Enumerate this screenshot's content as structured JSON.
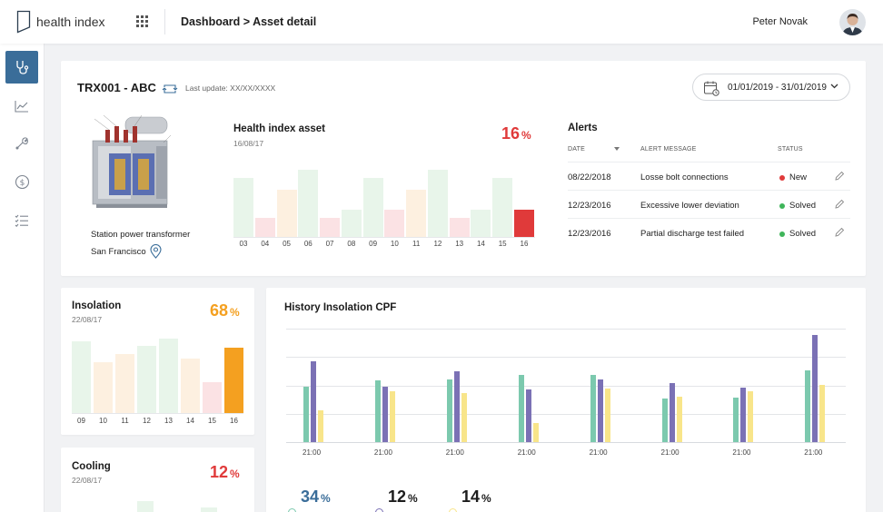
{
  "header": {
    "app_name": "health index",
    "breadcrumb": "Dashboard > Asset detail",
    "user_name": "Peter Novak"
  },
  "sidebar": {
    "items": [
      {
        "icon": "stethoscope-icon",
        "active": true
      },
      {
        "icon": "trend-chart-icon",
        "active": false
      },
      {
        "icon": "wrench-icon",
        "active": false
      },
      {
        "icon": "dollar-icon",
        "active": false
      },
      {
        "icon": "checklist-icon",
        "active": false
      }
    ]
  },
  "asset": {
    "title": "TRX001 - ABC",
    "last_update": "Last update: XX/XX/XXXX",
    "date_range": "01/01/2019 - 31/01/2019",
    "station": "Station power transformer",
    "city": "San Francisco"
  },
  "colors": {
    "red": "#e03a3a",
    "orange": "#f4a020",
    "green_light": "#e8f5ea",
    "pink_light": "#fbe2e4",
    "peach_light": "#fdf0e0",
    "blue": "#3a6d99",
    "teal": "#7cc9ae",
    "purple": "#7b71b5",
    "yellow": "#f8e58a"
  },
  "health_chart": {
    "title": "Health index asset",
    "date": "16/08/17",
    "percent": "16",
    "unit": "%",
    "chart_data": {
      "type": "bar",
      "categories": [
        "03",
        "04",
        "05",
        "06",
        "07",
        "08",
        "09",
        "10",
        "11",
        "12",
        "13",
        "14",
        "15",
        "16"
      ],
      "values": [
        71,
        23,
        57,
        80,
        23,
        33,
        71,
        33,
        57,
        80,
        23,
        33,
        71,
        33
      ],
      "colors": [
        "green",
        "pink",
        "peach",
        "green",
        "pink",
        "green",
        "green",
        "pink",
        "peach",
        "green",
        "pink",
        "green",
        "green",
        "red"
      ],
      "ylim": [
        0,
        100
      ]
    }
  },
  "alerts": {
    "title": "Alerts",
    "headers": {
      "date": "DATE",
      "message": "ALERT MESSAGE",
      "status": "STATUS"
    },
    "rows": [
      {
        "date": "08/22/2018",
        "message": "Losse bolt connections",
        "status": "New",
        "status_color": "#e03a3a"
      },
      {
        "date": "12/23/2016",
        "message": "Excessive lower deviation",
        "status": "Solved",
        "status_color": "#3fb55a"
      },
      {
        "date": "12/23/2016",
        "message": "Partial discharge test failed",
        "status": "Solved",
        "status_color": "#3fb55a"
      }
    ]
  },
  "insolation": {
    "title": "Insolation",
    "date": "22/08/17",
    "percent": "68",
    "unit": "%",
    "chart_data": {
      "type": "bar",
      "categories": [
        "09",
        "10",
        "11",
        "12",
        "13",
        "14",
        "15",
        "16"
      ],
      "values": [
        85,
        60,
        70,
        80,
        88,
        65,
        37,
        77
      ],
      "colors": [
        "green",
        "peach",
        "peach",
        "green",
        "green",
        "peach",
        "pink",
        "orange"
      ],
      "ylim": [
        0,
        100
      ]
    }
  },
  "cooling": {
    "title": "Cooling",
    "date": "22/08/17",
    "percent": "12",
    "unit": "%"
  },
  "history": {
    "title": "History Insolation CPF",
    "chart_data": {
      "type": "bar",
      "categories": [
        "21:00",
        "21:00",
        "21:00",
        "21:00",
        "21:00",
        "21:00",
        "21:00",
        "21:00"
      ],
      "series": [
        {
          "name": "series-teal",
          "values": [
            49,
            54,
            55,
            59,
            59,
            38,
            39,
            63
          ]
        },
        {
          "name": "series-purple",
          "values": [
            71,
            49,
            62,
            46,
            55,
            52,
            48,
            94
          ]
        },
        {
          "name": "series-yellow",
          "values": [
            28,
            45,
            43,
            17,
            47,
            40,
            45,
            50
          ]
        }
      ],
      "ylim": [
        0,
        100
      ]
    },
    "kpis": [
      {
        "value": "34",
        "unit": "%",
        "color": "#3a6d99"
      },
      {
        "value": "12",
        "unit": "%",
        "color": "#1c1c1c"
      },
      {
        "value": "14",
        "unit": "%",
        "color": "#1c1c1c"
      }
    ]
  }
}
